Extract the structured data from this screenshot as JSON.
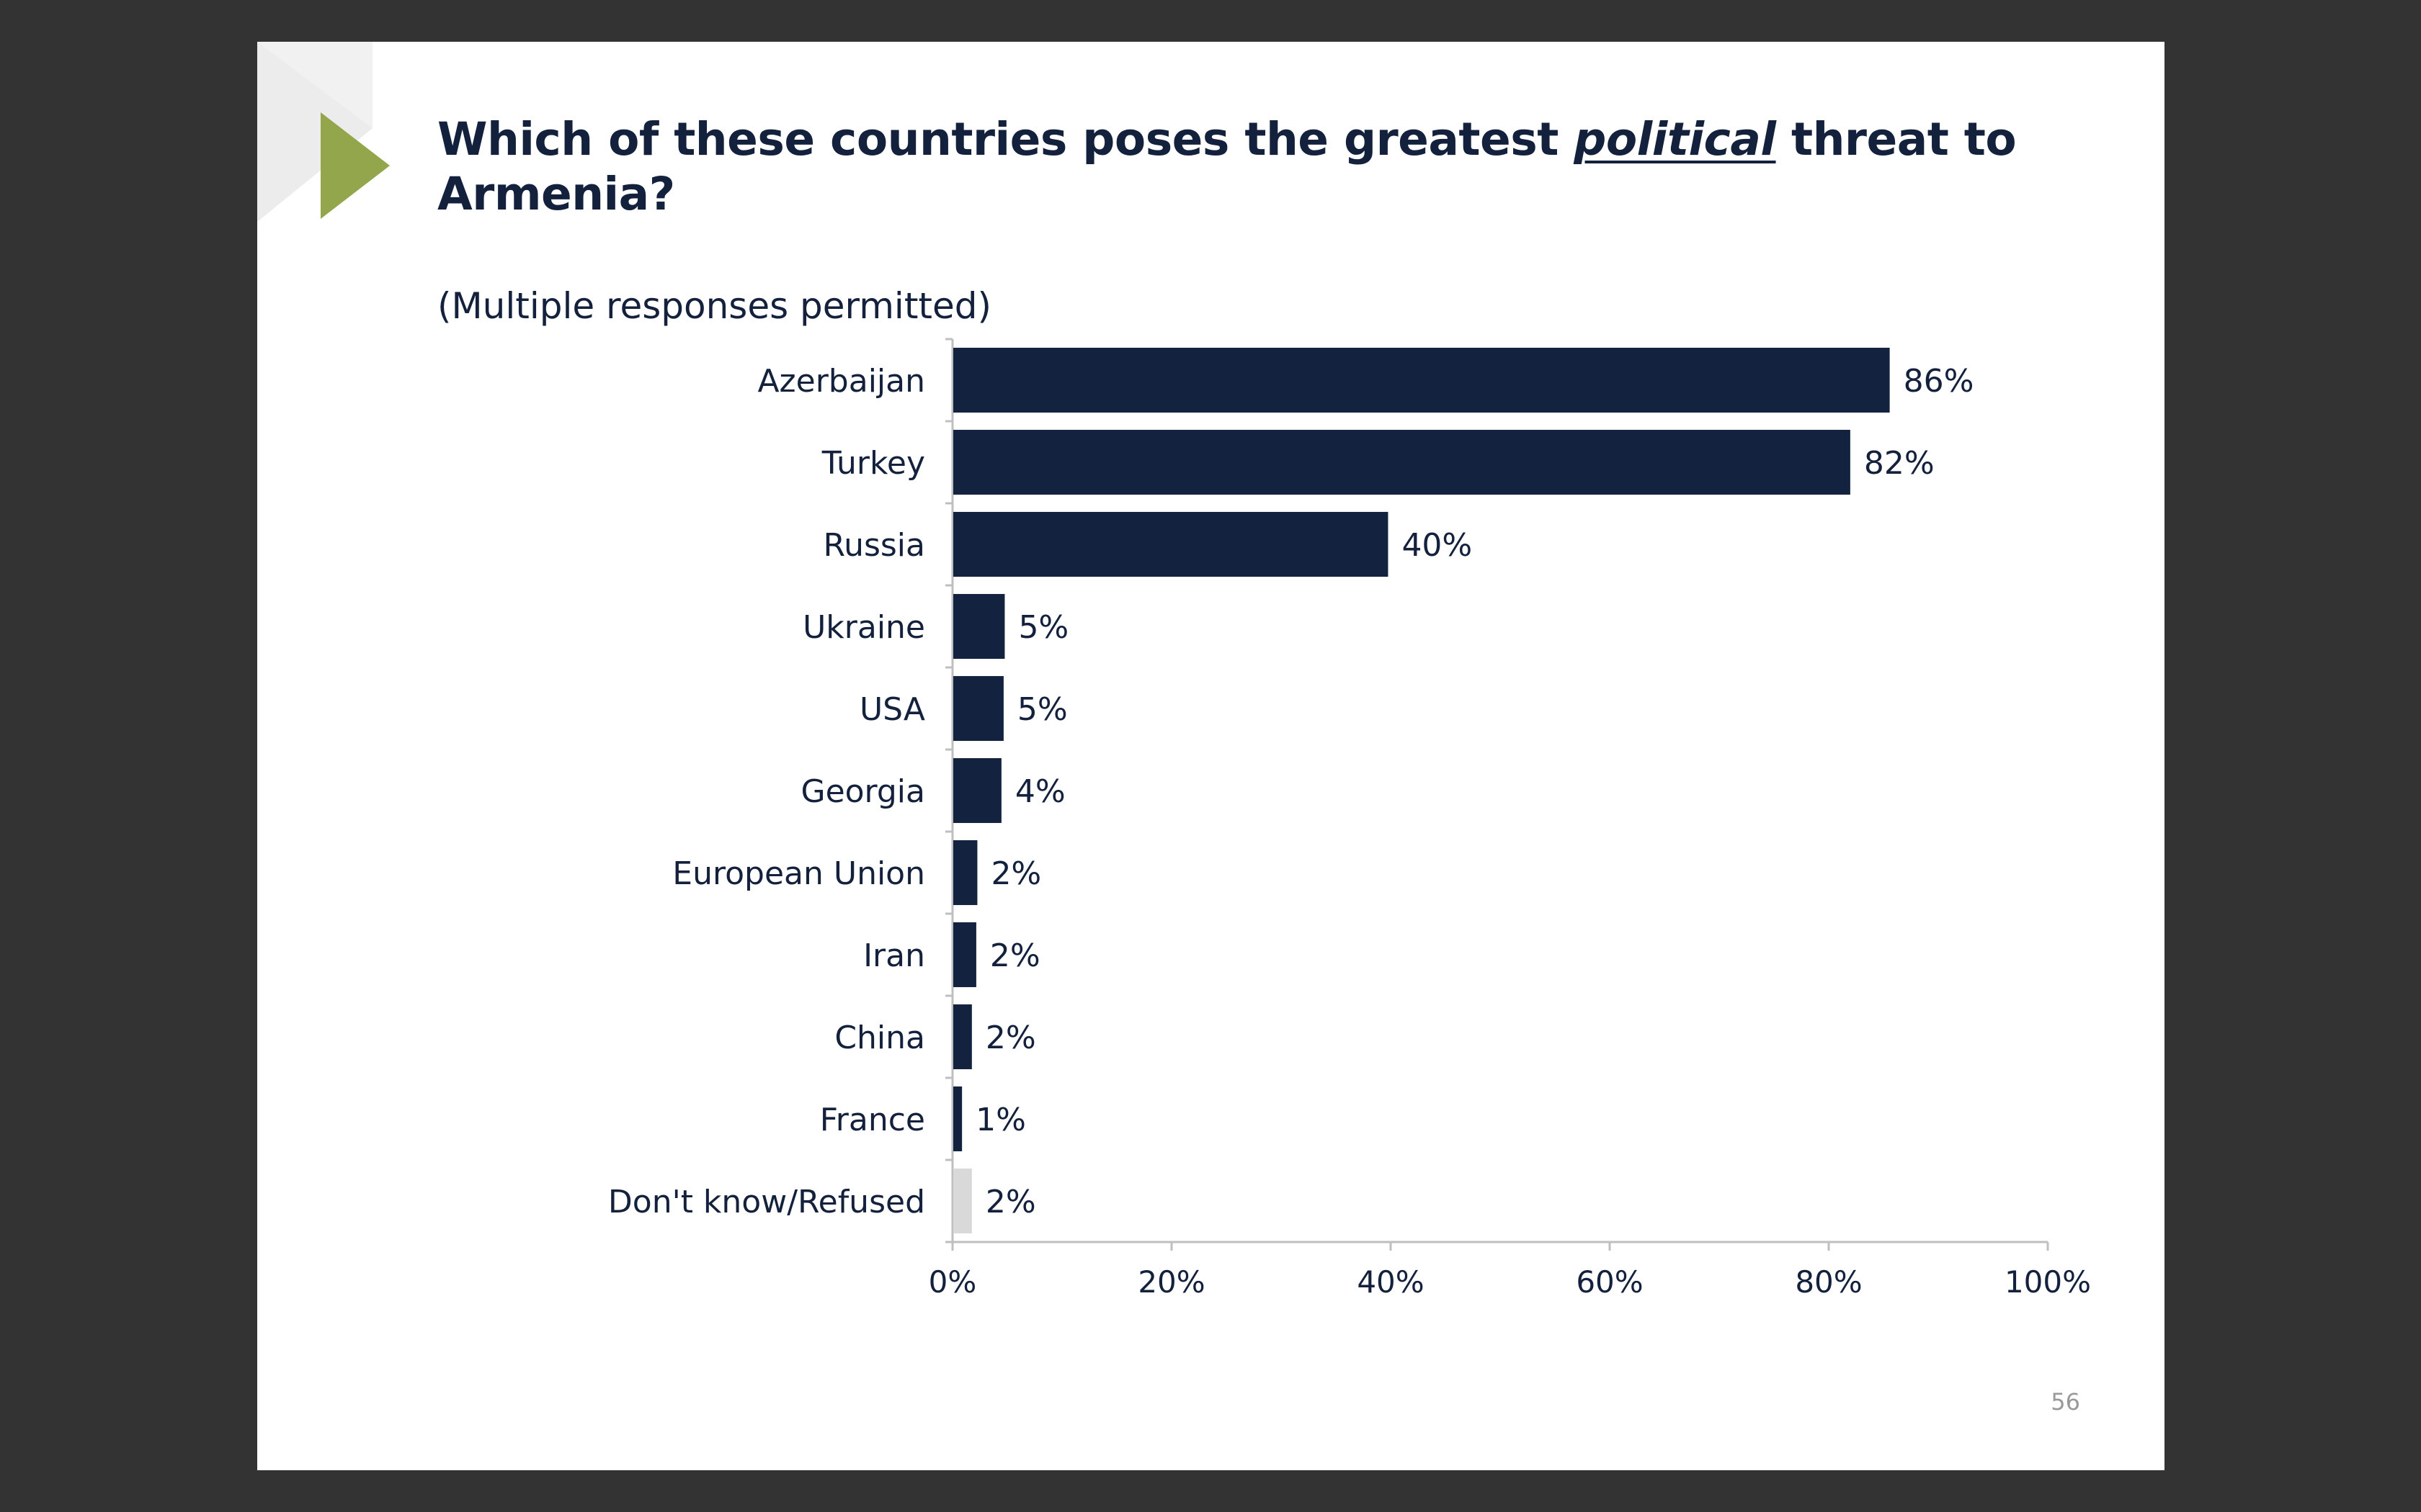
{
  "slide": {
    "title_before": "Which of these countries poses the greatest ",
    "title_emphasis": "political",
    "title_after": " threat to Armenia?",
    "subtitle": "(Multiple responses permitted)",
    "page_number": "56"
  },
  "colors": {
    "bar": "#13223f",
    "bar_muted": "#d9d9d9",
    "accent": "#93a64b",
    "text": "#14213d"
  },
  "chart_data": {
    "type": "bar",
    "orientation": "horizontal",
    "categories": [
      "Azerbaijan",
      "Turkey",
      "Russia",
      "Ukraine",
      "USA",
      "Georgia",
      "European Union",
      "Iran",
      "China",
      "France",
      "Don't know/Refused"
    ],
    "values": [
      85.5,
      81.9,
      39.7,
      4.7,
      4.6,
      4.4,
      2.2,
      2.1,
      1.7,
      0.8,
      1.7
    ],
    "labels": [
      "86%",
      "82%",
      "40%",
      "5%",
      "5%",
      "4%",
      "2%",
      "2%",
      "2%",
      "1%",
      "2%"
    ],
    "muted": [
      false,
      false,
      false,
      false,
      false,
      false,
      false,
      false,
      false,
      false,
      true
    ],
    "x_ticks": [
      0,
      20,
      40,
      60,
      80,
      100
    ],
    "x_tick_labels": [
      "0%",
      "20%",
      "40%",
      "60%",
      "80%",
      "100%"
    ],
    "xlim": [
      0,
      100
    ],
    "grid": false,
    "legend": "none"
  }
}
